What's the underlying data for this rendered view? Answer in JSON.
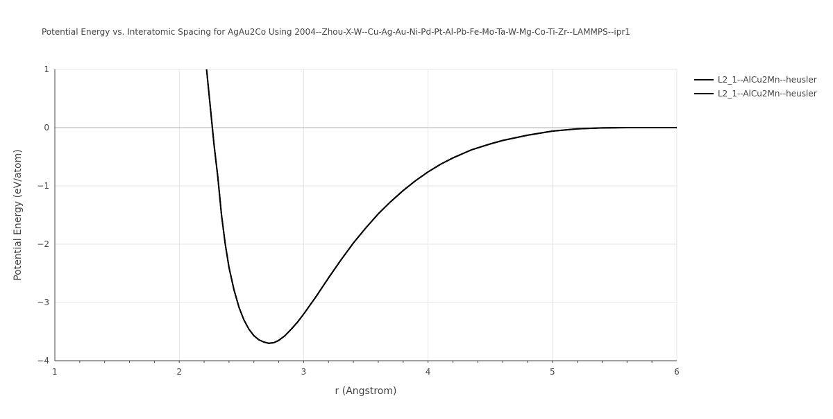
{
  "chart_data": {
    "type": "line",
    "title": "Potential Energy vs. Interatomic Spacing for AgAu2Co Using 2004--Zhou-X-W--Cu-Ag-Au-Ni-Pd-Pt-Al-Pb-Fe-Mo-Ta-W-Mg-Co-Ti-Zr--LAMMPS--ipr1",
    "xlabel": "r (Angstrom)",
    "ylabel": "Potential Energy (eV/atom)",
    "xlim": [
      1,
      6
    ],
    "ylim": [
      -4,
      1
    ],
    "x_ticks": [
      1,
      2,
      3,
      4,
      5,
      6
    ],
    "y_ticks": [
      -4,
      -3,
      -2,
      -1,
      0,
      1
    ],
    "y_tick_labels": [
      "−4",
      "−3",
      "−2",
      "−1",
      "0",
      "1"
    ],
    "grid": true,
    "legend_position": "top-right",
    "colors": {
      "series": "#000000",
      "grid": "#e5e5e5",
      "zero_line": "#c8c8c8",
      "text": "#444444"
    },
    "series": [
      {
        "name": "L2_1--AlCu2Mn--heusler",
        "x": [
          2.22,
          2.25,
          2.28,
          2.31,
          2.34,
          2.37,
          2.4,
          2.44,
          2.48,
          2.52,
          2.56,
          2.6,
          2.64,
          2.68,
          2.72,
          2.76,
          2.8,
          2.85,
          2.9,
          2.95,
          3.0,
          3.1,
          3.2,
          3.3,
          3.4,
          3.5,
          3.6,
          3.7,
          3.8,
          3.9,
          4.0,
          4.1,
          4.2,
          4.35,
          4.5,
          4.6,
          4.8,
          5.0,
          5.2,
          5.4,
          5.6,
          5.8,
          6.0
        ],
        "y": [
          1.0,
          0.35,
          -0.3,
          -0.85,
          -1.5,
          -2.0,
          -2.4,
          -2.78,
          -3.08,
          -3.3,
          -3.46,
          -3.57,
          -3.64,
          -3.68,
          -3.7,
          -3.69,
          -3.65,
          -3.57,
          -3.46,
          -3.34,
          -3.2,
          -2.9,
          -2.58,
          -2.27,
          -1.98,
          -1.72,
          -1.48,
          -1.27,
          -1.08,
          -0.91,
          -0.76,
          -0.63,
          -0.52,
          -0.38,
          -0.28,
          -0.22,
          -0.13,
          -0.06,
          -0.02,
          -0.005,
          0.0,
          0.0,
          0.0
        ]
      },
      {
        "name": "L2_1--AlCu2Mn--heusler",
        "x": [
          2.22,
          2.25,
          2.28,
          2.31,
          2.34,
          2.37,
          2.4,
          2.44,
          2.48,
          2.52,
          2.56,
          2.6,
          2.64,
          2.68,
          2.72,
          2.76,
          2.8,
          2.85,
          2.9,
          2.95,
          3.0,
          3.1,
          3.2,
          3.3,
          3.4,
          3.5,
          3.6,
          3.7,
          3.8,
          3.9,
          4.0,
          4.1,
          4.2,
          4.35,
          4.5,
          4.6,
          4.8,
          5.0,
          5.2,
          5.4,
          5.6,
          5.8,
          6.0
        ],
        "y": [
          1.0,
          0.35,
          -0.3,
          -0.85,
          -1.5,
          -2.0,
          -2.4,
          -2.78,
          -3.08,
          -3.3,
          -3.46,
          -3.57,
          -3.64,
          -3.68,
          -3.7,
          -3.69,
          -3.65,
          -3.57,
          -3.46,
          -3.34,
          -3.2,
          -2.9,
          -2.58,
          -2.27,
          -1.98,
          -1.72,
          -1.48,
          -1.27,
          -1.08,
          -0.91,
          -0.76,
          -0.63,
          -0.52,
          -0.38,
          -0.28,
          -0.22,
          -0.13,
          -0.06,
          -0.02,
          -0.005,
          0.0,
          0.0,
          0.0
        ]
      }
    ]
  }
}
